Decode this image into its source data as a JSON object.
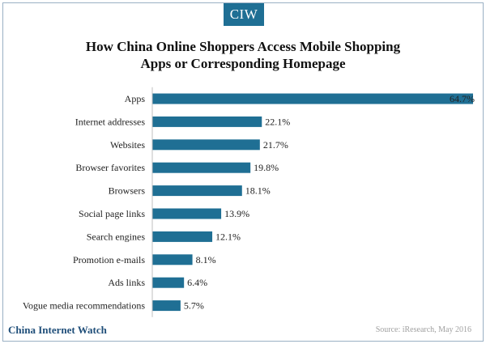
{
  "logo": "CIW",
  "chart_data": {
    "type": "bar",
    "orientation": "horizontal",
    "title_line1": "How China Online Shoppers Access Mobile Shopping",
    "title_line2": "Apps or Corresponding Homepage",
    "categories": [
      "Apps",
      "Internet addresses",
      "Websites",
      "Browser favorites",
      "Browsers",
      "Social page links",
      "Search engines",
      "Promotion e-mails",
      "Ads links",
      "Vogue media recommendations"
    ],
    "values": [
      64.7,
      22.1,
      21.7,
      19.8,
      18.1,
      13.9,
      12.1,
      8.1,
      6.4,
      5.7
    ],
    "value_labels": [
      "64.7%",
      "22.1%",
      "21.7%",
      "19.8%",
      "18.1%",
      "13.9%",
      "12.1%",
      "8.1%",
      "6.4%",
      "5.7%"
    ],
    "xlim": [
      0,
      64.7
    ],
    "grid": false,
    "legend": "none",
    "bar_color": "#1f6f94"
  },
  "footer": {
    "brand": "China Internet Watch",
    "source": "Source: iResearch, May 2016"
  }
}
